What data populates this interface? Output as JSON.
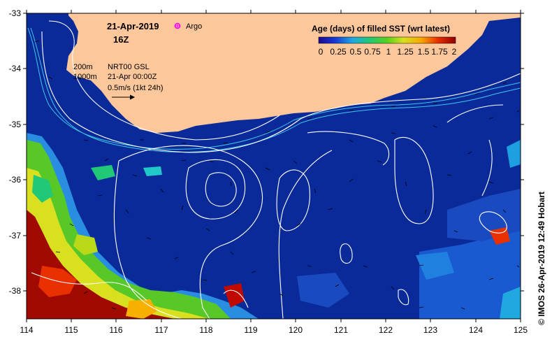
{
  "header": {
    "date": "21-Apr-2019",
    "hour": "16Z",
    "argo_label": "Argo"
  },
  "annotations": {
    "contour_200": "200m",
    "contour_1000": "1000m",
    "product": "NRT00 GSL",
    "product_date": "21-Apr 00:00Z",
    "current_scale": "0.5m/s (1kt 24h)"
  },
  "colorbar": {
    "title": "Age (days) of filled SST (wrt latest)",
    "tick_labels": [
      "0",
      "0.25",
      "0.5",
      "0.75",
      "1",
      "1.25",
      "1.5",
      "1.75",
      "2"
    ],
    "range": [
      0,
      2
    ]
  },
  "credit": "© IMOS 26-Apr-2019 12:49 Hobart",
  "map": {
    "lon_range": [
      114,
      125
    ],
    "lat_range": [
      -38.5,
      -33
    ],
    "lon_ticks": [
      "114",
      "115",
      "116",
      "117",
      "118",
      "119",
      "120",
      "121",
      "122",
      "123",
      "124",
      "125"
    ],
    "lat_ticks": [
      "-33",
      "-34",
      "-35",
      "-36",
      "-37",
      "-38"
    ],
    "colors": {
      "ocean": "#0a2a9a",
      "land": "#fcc79a",
      "contours": "#ffffff",
      "isobath": "#40c8e8",
      "argo": "#ff00ff"
    }
  }
}
